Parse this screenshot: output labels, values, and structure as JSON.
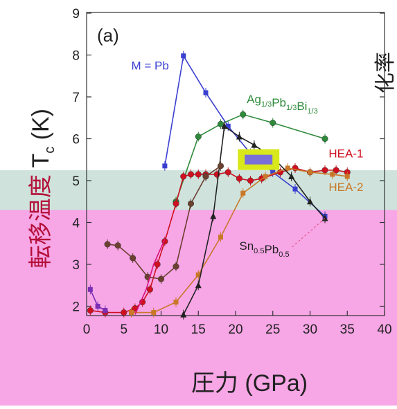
{
  "chart_data": {
    "type": "line",
    "panel_label": "(a)",
    "xlabel": "圧力 (GPa)",
    "ylabel": {
      "dark_part": "転移温度",
      "red_part": "T",
      "subscript": "c",
      "unit": "(K)"
    },
    "right_label_fragment": "化率",
    "xlim": [
      0,
      40
    ],
    "ylim": [
      1.8,
      9
    ],
    "x_ticks": [
      "0",
      "5",
      "10",
      "15",
      "20",
      "25",
      "30",
      "35",
      "40"
    ],
    "y_ticks": [
      "2",
      "3",
      "4",
      "5",
      "6",
      "7",
      "8",
      "9"
    ],
    "grid": false,
    "background_bands": [
      {
        "y_top": 5.25,
        "y_bottom": 4.3,
        "color": "#cfe3dc"
      },
      {
        "y_top": 4.3,
        "y_bottom": 1.3,
        "color": "#f7a6e6"
      }
    ],
    "series": [
      {
        "name": "M = Pb",
        "color": "#3a3fd0",
        "marker": "square",
        "x": [
          10.5,
          13,
          16,
          19,
          22,
          25,
          28,
          32
        ],
        "y": [
          5.35,
          7.98,
          7.1,
          6.3,
          5.65,
          5.2,
          4.8,
          4.15
        ]
      },
      {
        "name": "Ag1/3Pb1/3Bi1/3",
        "color": "#2e8a3a",
        "marker": "circle",
        "x": [
          12,
          15,
          18,
          21,
          25,
          32
        ],
        "y": [
          4.5,
          6.05,
          6.35,
          6.58,
          6.38,
          6.0
        ]
      },
      {
        "name": "HEA-1",
        "color": "#d01020",
        "marker": "circle",
        "x": [
          0.5,
          2.5,
          5,
          6.5,
          7.5,
          8.5,
          9.5,
          10.5,
          12,
          13,
          14,
          15,
          16,
          17.5,
          19,
          20.5,
          22,
          23.5,
          26,
          28,
          30,
          32,
          33.5,
          35
        ],
        "y": [
          1.9,
          1.85,
          1.85,
          1.95,
          2.1,
          2.4,
          3.0,
          3.55,
          4.45,
          5.1,
          5.15,
          5.15,
          5.15,
          5.15,
          5.2,
          5.05,
          5.0,
          5.05,
          5.2,
          5.3,
          5.2,
          5.25,
          5.25,
          5.2
        ]
      },
      {
        "name": "HEA-2",
        "color": "#c87828",
        "marker": "square",
        "x": [
          6,
          9,
          12,
          15,
          18,
          21,
          24,
          27,
          30,
          33,
          35
        ],
        "y": [
          1.85,
          1.85,
          2.1,
          2.75,
          3.65,
          4.7,
          5.1,
          5.3,
          5.2,
          5.15,
          5.1
        ]
      },
      {
        "name": "Sn0.5Pb0.5",
        "color": "#222222",
        "marker": "triangle",
        "x": [
          13,
          15,
          17,
          18.5,
          20.5,
          22.5,
          25,
          27.5,
          30,
          32
        ],
        "y": [
          1.8,
          2.5,
          4.15,
          6.3,
          6.05,
          5.85,
          5.55,
          5.1,
          4.5,
          4.1
        ]
      },
      {
        "name": "",
        "color": "#6b4030",
        "marker": "circle",
        "x": [
          2.8,
          4.2,
          6.2,
          8.2,
          10,
          12,
          14,
          16,
          18
        ],
        "y": [
          3.48,
          3.45,
          3.15,
          2.7,
          2.65,
          2.95,
          4.45,
          5.1,
          5.35
        ]
      },
      {
        "name": "",
        "color": "#7a2fb5",
        "marker": "square",
        "x": [
          0.5,
          1.5,
          2.5
        ],
        "y": [
          2.4,
          2.0,
          1.9
        ]
      },
      {
        "name": "",
        "color": "#d8107a",
        "marker": "none",
        "x": [
          6.5,
          8,
          9,
          10.5
        ],
        "y": [
          1.8,
          2.4,
          3.0,
          3.6
        ]
      }
    ],
    "annotations": [
      {
        "id": "lbl-pb",
        "text": "M = Pb",
        "color": "#3a3fd0",
        "x": 6,
        "y": 7.65
      },
      {
        "id": "lbl-ag",
        "text": "Ag",
        "sub1": "1/3",
        "text2": "Pb",
        "sub2": "1/3",
        "text3": "Bi",
        "sub3": "1/3",
        "color": "#2e8a3a",
        "x": 21.5,
        "y": 6.85
      },
      {
        "id": "lbl-hea1",
        "text": "HEA-1",
        "color": "#d01020",
        "x": 32.5,
        "y": 5.55
      },
      {
        "id": "lbl-hea2",
        "text": "HEA-2",
        "color": "#c87828",
        "x": 32.5,
        "y": 4.75
      },
      {
        "id": "lbl-snpb",
        "text": "Sn",
        "sub1": "0.5",
        "text2": "Pb",
        "sub2": "0.5",
        "color": "#222222",
        "x": 20.5,
        "y": 3.35
      }
    ]
  }
}
